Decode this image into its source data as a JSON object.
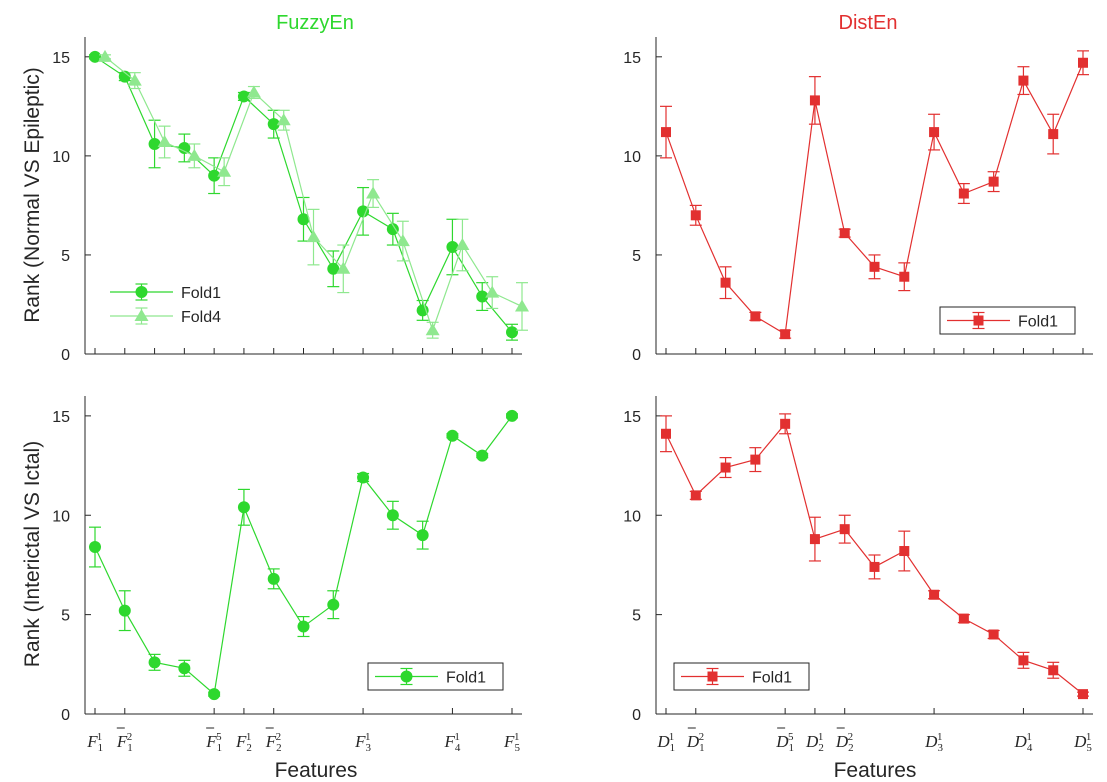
{
  "figure": {
    "xlabel": "Features",
    "row_labels": [
      "Rank (Normal VS Epileptic)",
      "Rank (Interictal VS Ictal)"
    ],
    "colors": {
      "fuzzy_fold1": "#2ed82e",
      "fuzzy_fold4": "#8fe88f",
      "dist_fold1": "#e23030",
      "axis": "#262626"
    }
  },
  "chart_data": [
    {
      "type": "line",
      "title": "FuzzyEn",
      "xlabel": "",
      "ylabel": "Rank (Normal VS Epileptic)",
      "ylim": [
        0,
        16
      ],
      "yticks": [
        0,
        5,
        10,
        15
      ],
      "x": [
        1,
        2,
        3,
        4,
        5,
        6,
        7,
        8,
        9,
        10,
        11,
        12,
        13,
        14,
        15
      ],
      "series": [
        {
          "name": "Fold1",
          "marker": "circle",
          "values": [
            15,
            14,
            10.6,
            10.4,
            9,
            13,
            11.6,
            6.8,
            4.3,
            7.2,
            6.3,
            2.2,
            5.4,
            2.9,
            1.1
          ],
          "err": [
            0.1,
            0.2,
            1.2,
            0.7,
            0.9,
            0.2,
            0.7,
            1.1,
            0.9,
            1.2,
            0.8,
            0.5,
            1.4,
            0.7,
            0.4
          ]
        },
        {
          "name": "Fold4",
          "marker": "triangle",
          "values": [
            15,
            13.8,
            10.7,
            10,
            9.2,
            13.2,
            11.8,
            5.9,
            4.3,
            8.1,
            5.7,
            1.2,
            5.5,
            3.1,
            2.4
          ],
          "err": [
            0.1,
            0.4,
            0.8,
            0.6,
            0.7,
            0.3,
            0.5,
            1.4,
            1.2,
            0.7,
            1.0,
            0.4,
            1.3,
            0.8,
            1.2
          ]
        }
      ],
      "legend": "bottom-left"
    },
    {
      "type": "line",
      "title": "DistEn",
      "xlabel": "",
      "ylabel": "",
      "ylim": [
        0,
        16
      ],
      "yticks": [
        0,
        5,
        10,
        15
      ],
      "x": [
        1,
        2,
        3,
        4,
        5,
        6,
        7,
        8,
        9,
        10,
        11,
        12,
        13,
        14,
        15
      ],
      "series": [
        {
          "name": "Fold1",
          "marker": "square",
          "values": [
            11.2,
            7,
            3.6,
            1.9,
            1,
            12.8,
            6.1,
            4.4,
            3.9,
            11.2,
            8.1,
            8.7,
            13.8,
            11.1,
            14.7
          ],
          "err": [
            1.3,
            0.5,
            0.8,
            0.2,
            0.2,
            1.2,
            0.2,
            0.6,
            0.7,
            0.9,
            0.5,
            0.5,
            0.7,
            1.0,
            0.6
          ]
        }
      ],
      "legend": "bottom-right"
    },
    {
      "type": "line",
      "title": "",
      "xlabel": "Features",
      "ylabel": "Rank (Interictal VS Ictal)",
      "ylim": [
        0,
        16
      ],
      "yticks": [
        0,
        5,
        10,
        15
      ],
      "x": [
        1,
        2,
        3,
        4,
        5,
        6,
        7,
        8,
        9,
        10,
        11,
        12,
        13,
        14,
        15
      ],
      "xticks": [
        {
          "x": 1,
          "base": "F",
          "sub": "1",
          "sup": "1",
          "bar": false
        },
        {
          "x": 2,
          "base": "F",
          "sub": "1",
          "sup": "2",
          "bar": true
        },
        {
          "x": 5,
          "base": "F",
          "sub": "1",
          "sup": "5",
          "bar": true
        },
        {
          "x": 6,
          "base": "F",
          "sub": "2",
          "sup": "1",
          "bar": false
        },
        {
          "x": 7,
          "base": "F",
          "sub": "2",
          "sup": "2",
          "bar": true
        },
        {
          "x": 10,
          "base": "F",
          "sub": "3",
          "sup": "1",
          "bar": false
        },
        {
          "x": 13,
          "base": "F",
          "sub": "4",
          "sup": "1",
          "bar": false
        },
        {
          "x": 15,
          "base": "F",
          "sub": "5",
          "sup": "1",
          "bar": false
        }
      ],
      "series": [
        {
          "name": "Fold1",
          "marker": "circle",
          "values": [
            8.4,
            5.2,
            2.6,
            2.3,
            1,
            10.4,
            6.8,
            4.4,
            5.5,
            11.9,
            10,
            9,
            14,
            13,
            15
          ],
          "err": [
            1.0,
            1.0,
            0.4,
            0.4,
            0.1,
            0.9,
            0.5,
            0.5,
            0.7,
            0.2,
            0.7,
            0.7,
            0.1,
            0.1,
            0.1
          ]
        }
      ],
      "legend": "bottom-right"
    },
    {
      "type": "line",
      "title": "",
      "xlabel": "Features",
      "ylabel": "",
      "ylim": [
        0,
        16
      ],
      "yticks": [
        0,
        5,
        10,
        15
      ],
      "x": [
        1,
        2,
        3,
        4,
        5,
        6,
        7,
        8,
        9,
        10,
        11,
        12,
        13,
        14,
        15
      ],
      "xticks": [
        {
          "x": 1,
          "base": "D",
          "sub": "1",
          "sup": "1",
          "bar": false
        },
        {
          "x": 2,
          "base": "D",
          "sub": "1",
          "sup": "2",
          "bar": true
        },
        {
          "x": 5,
          "base": "D",
          "sub": "1",
          "sup": "5",
          "bar": true
        },
        {
          "x": 6,
          "base": "D",
          "sub": "2",
          "sup": "1",
          "bar": false
        },
        {
          "x": 7,
          "base": "D",
          "sub": "2",
          "sup": "2",
          "bar": true
        },
        {
          "x": 10,
          "base": "D",
          "sub": "3",
          "sup": "1",
          "bar": false
        },
        {
          "x": 13,
          "base": "D",
          "sub": "4",
          "sup": "1",
          "bar": false
        },
        {
          "x": 15,
          "base": "D",
          "sub": "5",
          "sup": "1",
          "bar": false
        }
      ],
      "series": [
        {
          "name": "Fold1",
          "marker": "square",
          "values": [
            14.1,
            11,
            12.4,
            12.8,
            14.6,
            8.8,
            9.3,
            7.4,
            8.2,
            6,
            4.8,
            4,
            2.7,
            2.2,
            1
          ],
          "err": [
            0.9,
            0.2,
            0.5,
            0.6,
            0.5,
            1.1,
            0.7,
            0.6,
            1.0,
            0.2,
            0.2,
            0.2,
            0.4,
            0.4,
            0.1
          ]
        }
      ],
      "legend": "bottom-left"
    }
  ]
}
